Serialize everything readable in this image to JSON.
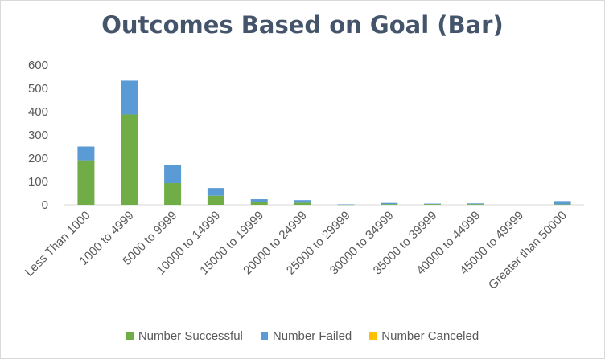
{
  "chart_data": {
    "type": "bar",
    "stacked": true,
    "title": "Outcomes Based on Goal (Bar)",
    "xlabel": "",
    "ylabel": "",
    "ylim": [
      0,
      600
    ],
    "yticks": [
      0,
      100,
      200,
      300,
      400,
      500,
      600
    ],
    "grid": false,
    "legend_position": "bottom",
    "categories": [
      "Less Than 1000",
      "1000 to 4999",
      "5000 to 9999",
      "10000 to 14999",
      "15000 to 19999",
      "20000 to 24999",
      "25000 to 29999",
      "30000 to 34999",
      "35000 to 39999",
      "40000 to 44999",
      "45000 to 49999",
      "Greater than 50000"
    ],
    "series": [
      {
        "name": "Number Successful",
        "color": "#70ad47",
        "values": [
          191,
          388,
          93,
          39,
          12,
          9,
          1,
          3,
          3,
          3,
          0,
          2
        ]
      },
      {
        "name": "Number Failed",
        "color": "#5b9bd5",
        "values": [
          59,
          145,
          77,
          33,
          12,
          11,
          1,
          5,
          2,
          3,
          0,
          14
        ]
      },
      {
        "name": "Number Canceled",
        "color": "#ffc000",
        "values": [
          0,
          0,
          0,
          0,
          0,
          0,
          0,
          0,
          0,
          0,
          0,
          0
        ]
      }
    ]
  }
}
